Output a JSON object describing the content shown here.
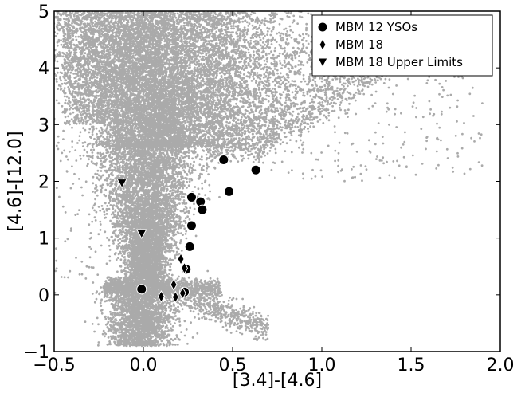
{
  "chart_data": {
    "type": "scatter",
    "title": "",
    "xlabel": "[3.4]-[4.6]",
    "ylabel": "[4.6]-[12.0]",
    "xlim": [
      -0.5,
      2.0
    ],
    "ylim": [
      -1,
      5
    ],
    "xticks": [
      -0.5,
      0.0,
      0.5,
      1.0,
      1.5,
      2.0
    ],
    "xtick_labels": [
      "−0.5",
      "0.0",
      "0.5",
      "1.0",
      "1.5",
      "2.0"
    ],
    "yticks": [
      -1,
      0,
      1,
      2,
      3,
      4,
      5
    ],
    "ytick_labels": [
      "−1",
      "0",
      "1",
      "2",
      "3",
      "4",
      "5"
    ],
    "grid": false,
    "legend_position": "top-right",
    "background_colors": {
      "background": "#aaaaaa"
    },
    "series": [
      {
        "name": "MBM 12 YSOs",
        "marker": "circle",
        "color": "#000000",
        "points": [
          [
            -0.01,
            0.1
          ],
          [
            0.23,
            0.05
          ],
          [
            0.24,
            0.45
          ],
          [
            0.26,
            0.85
          ],
          [
            0.27,
            1.22
          ],
          [
            0.27,
            1.72
          ],
          [
            0.32,
            1.64
          ],
          [
            0.33,
            1.5
          ],
          [
            0.45,
            2.38
          ],
          [
            0.48,
            1.82
          ],
          [
            0.63,
            2.2
          ]
        ]
      },
      {
        "name": "MBM 18",
        "marker": "diamond",
        "color": "#000000",
        "points": [
          [
            0.1,
            -0.03
          ],
          [
            0.17,
            0.18
          ],
          [
            0.18,
            -0.04
          ],
          [
            0.21,
            0.63
          ],
          [
            0.22,
            0.03
          ],
          [
            0.23,
            0.47
          ]
        ]
      },
      {
        "name": "MBM 18 Upper Limits",
        "marker": "triangle-down",
        "color": "#000000",
        "points": [
          [
            -0.12,
            1.97
          ],
          [
            -0.01,
            1.08
          ]
        ]
      }
    ]
  }
}
